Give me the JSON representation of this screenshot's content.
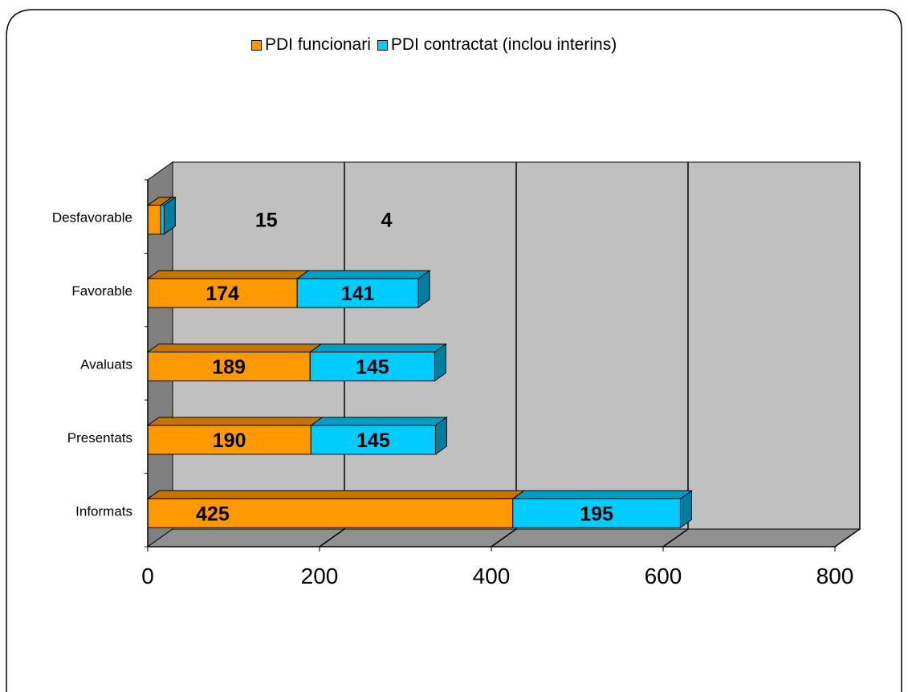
{
  "colors": {
    "series_front": [
      "#ff9900",
      "#00ccff"
    ],
    "series_top": [
      "#c67500",
      "#009ec6"
    ],
    "series_side": [
      "#a36000",
      "#007e9e"
    ],
    "wall": "#c0c0c0",
    "side_wall": "#808080",
    "floor": "#909090"
  },
  "legend": {
    "items": [
      "PDI funcionari",
      "PDI contractat (inclou interins)"
    ]
  },
  "chart_data": {
    "type": "bar",
    "orientation": "horizontal",
    "stacked": true,
    "three_d": true,
    "categories": [
      "Desfavorable",
      "Favorable",
      "Avaluats",
      "Presentats",
      "Informats"
    ],
    "series": [
      {
        "name": "PDI funcionari",
        "values": [
          15,
          174,
          189,
          190,
          425
        ]
      },
      {
        "name": "PDI contractat (inclou interins)",
        "values": [
          4,
          141,
          145,
          145,
          195
        ]
      }
    ],
    "xlim": [
      0,
      800
    ],
    "x_ticks": [
      0,
      200,
      400,
      600,
      800
    ],
    "grid": "vertical",
    "legend_position": "top"
  }
}
